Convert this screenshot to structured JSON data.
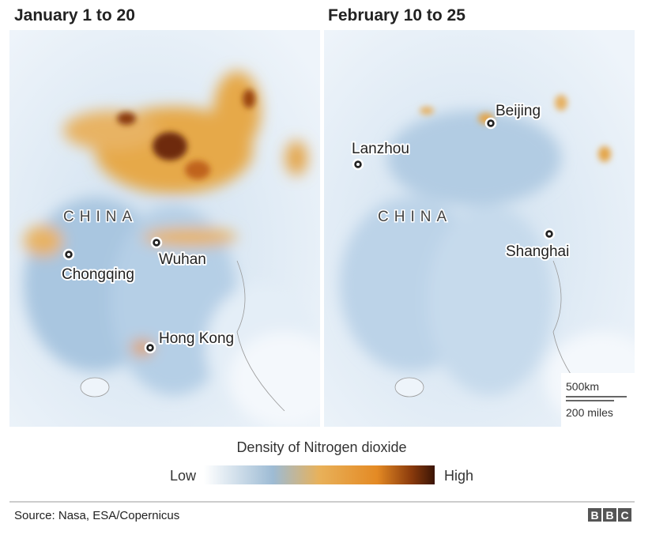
{
  "panels": [
    {
      "title": "January 1 to 20",
      "country": "CHINA",
      "cities": [
        "Chongqing",
        "Wuhan",
        "Hong Kong"
      ]
    },
    {
      "title": "February 10 to 25",
      "country": "CHINA",
      "cities": [
        "Beijing",
        "Lanzhou",
        "Shanghai"
      ]
    }
  ],
  "scale": {
    "km": "500km",
    "miles": "200 miles"
  },
  "legend": {
    "title": "Density of Nitrogen dioxide",
    "low": "Low",
    "high": "High"
  },
  "source": "Source: Nasa, ESA/Copernicus",
  "logo": [
    "B",
    "B",
    "C"
  ]
}
